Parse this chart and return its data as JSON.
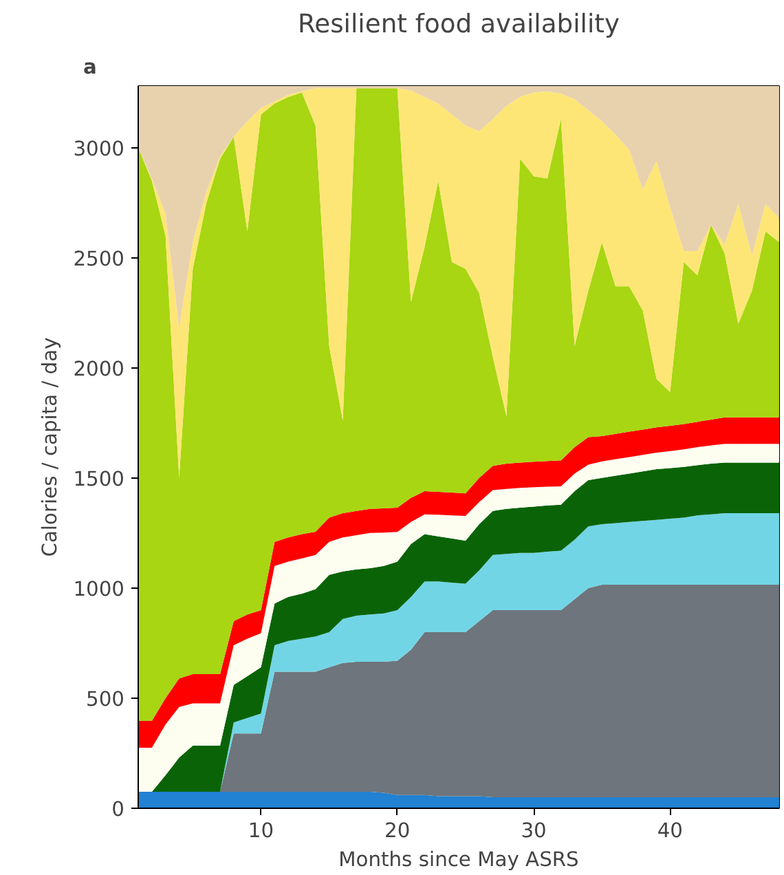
{
  "chart_data": {
    "type": "area",
    "stacked": true,
    "title": "Resilient food availability",
    "xlabel": "Months since May ASRS",
    "ylabel": "Calories / capita / day",
    "annotations": [
      "a"
    ],
    "x": [
      1,
      2,
      3,
      4,
      5,
      6,
      7,
      8,
      9,
      10,
      11,
      12,
      13,
      14,
      15,
      16,
      17,
      18,
      19,
      20,
      21,
      22,
      23,
      24,
      25,
      26,
      27,
      28,
      29,
      30,
      31,
      32,
      33,
      34,
      35,
      36,
      37,
      38,
      39,
      40,
      41,
      42,
      43,
      44,
      45,
      46,
      47,
      48
    ],
    "xlim": [
      1,
      48
    ],
    "xticks": [
      10,
      20,
      30,
      40
    ],
    "ylim": [
      0,
      3280
    ],
    "yticks": [
      0,
      500,
      1000,
      1500,
      2000,
      2500,
      3000
    ],
    "series": [
      {
        "color": "#2181d2",
        "values": [
          75,
          75,
          75,
          75,
          75,
          75,
          75,
          75,
          75,
          75,
          75,
          75,
          75,
          75,
          75,
          75,
          75,
          75,
          70,
          60,
          60,
          60,
          55,
          55,
          55,
          55,
          50,
          50,
          50,
          50,
          50,
          50,
          50,
          50,
          50,
          50,
          50,
          50,
          50,
          50,
          50,
          50,
          50,
          50,
          50,
          50,
          50,
          50
        ]
      },
      {
        "color": "#6e757c",
        "values": [
          0,
          0,
          0,
          0,
          0,
          0,
          0,
          265,
          265,
          265,
          545,
          545,
          545,
          545,
          565,
          585,
          590,
          590,
          595,
          610,
          660,
          740,
          745,
          745,
          745,
          795,
          850,
          850,
          850,
          850,
          850,
          850,
          900,
          950,
          965,
          965,
          965,
          965,
          965,
          965,
          965,
          965,
          965,
          965,
          965,
          965,
          965,
          965
        ]
      },
      {
        "color": "#72d5e6",
        "values": [
          0,
          0,
          0,
          0,
          0,
          0,
          0,
          50,
          70,
          90,
          120,
          140,
          150,
          160,
          160,
          200,
          210,
          215,
          220,
          230,
          240,
          230,
          230,
          225,
          220,
          230,
          250,
          255,
          260,
          260,
          265,
          270,
          270,
          280,
          275,
          280,
          285,
          290,
          295,
          300,
          305,
          315,
          320,
          325,
          325,
          325,
          325,
          325
        ]
      },
      {
        "color": "#0a6407",
        "values": [
          0,
          0,
          75,
          155,
          209,
          209,
          209,
          170,
          190,
          210,
          190,
          200,
          205,
          215,
          260,
          215,
          210,
          210,
          215,
          220,
          240,
          215,
          205,
          200,
          195,
          210,
          200,
          205,
          205,
          210,
          210,
          208,
          220,
          210,
          210,
          215,
          220,
          225,
          230,
          230,
          230,
          228,
          230,
          230,
          230,
          230,
          230,
          230
        ]
      },
      {
        "color": "#fdfdf0",
        "values": [
          200,
          200,
          230,
          230,
          192,
          192,
          192,
          180,
          170,
          155,
          170,
          160,
          160,
          155,
          150,
          155,
          155,
          160,
          152,
          135,
          100,
          90,
          98,
          105,
          113,
          100,
          95,
          90,
          90,
          88,
          85,
          84,
          80,
          70,
          75,
          75,
          75,
          75,
          75,
          77,
          80,
          82,
          83,
          85,
          85,
          85,
          85,
          85
        ]
      },
      {
        "color": "#fe0000",
        "values": [
          122,
          122,
          120,
          130,
          133,
          133,
          133,
          110,
          110,
          105,
          110,
          110,
          110,
          106,
          110,
          110,
          110,
          110,
          110,
          110,
          110,
          105,
          104,
          104,
          102,
          110,
          110,
          115,
          115,
          116,
          117,
          118,
          120,
          125,
          115,
          115,
          115,
          115,
          115,
          115,
          115,
          115,
          117,
          120,
          120,
          120,
          120,
          120
        ]
      },
      {
        "color": "#a8d612",
        "values": [
          2603,
          2453,
          2100,
          910,
          1841,
          2141,
          2341,
          2200,
          1740,
          2250,
          1990,
          2000,
          2005,
          1844,
          780,
          420,
          1920,
          1910,
          1908,
          1905,
          890,
          1110,
          1413,
          1046,
          1020,
          840,
          495,
          215,
          1380,
          1296,
          1283,
          1550,
          460,
          665,
          880,
          670,
          660,
          540,
          220,
          153,
          735,
          665,
          885,
          745,
          425,
          575,
          845,
          795
        ]
      },
      {
        "color": "#fde675",
        "values": [
          0,
          10,
          100,
          680,
          120,
          50,
          10,
          0,
          500,
          30,
          10,
          10,
          6,
          170,
          1170,
          1510,
          0,
          0,
          0,
          0,
          960,
          680,
          350,
          670,
          650,
          735,
          1080,
          1410,
          280,
          380,
          395,
          115,
          1120,
          820,
          550,
          690,
          620,
          550,
          990,
          840,
          50,
          110,
          0,
          40,
          545,
          160,
          125,
          110
        ]
      },
      {
        "color": "#e8d2ae",
        "values": [
          280,
          420,
          580,
          1100,
          710,
          480,
          320,
          230,
          160,
          100,
          70,
          40,
          24,
          10,
          10,
          10,
          10,
          10,
          10,
          10,
          20,
          50,
          80,
          130,
          180,
          205,
          150,
          90,
          50,
          30,
          25,
          35,
          60,
          110,
          160,
          220,
          290,
          470,
          340,
          550,
          750,
          750,
          630,
          720,
          535,
          770,
          535,
          600
        ]
      }
    ]
  }
}
